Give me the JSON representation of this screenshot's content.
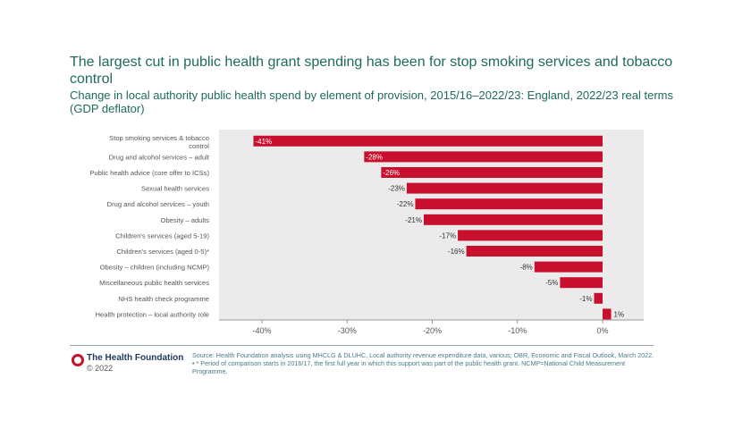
{
  "title": "The largest cut in public health grant spending has been for stop smoking services and tobacco control",
  "subtitle": "Change in local authority public health spend by element of provision, 2015/16–2022/23: England, 2022/23 real terms (GDP deflator)",
  "footer": {
    "org": "The Health Foundation",
    "copyright": "© 2022",
    "source": "Source: Health Foundation analysis using MHCLG & DLUHC, Local authority revenue expenditure data, various; OBR, Economic and Fiscal Outlook, March 2022. • * Period of comparison starts in 2016/17, the first full year in which this support was part of the public health grant. NCMP=National Child Measurement Programme."
  },
  "chart_data": {
    "type": "bar",
    "orientation": "horizontal",
    "categories": [
      "Stop smoking services & tobacco control",
      "Drug and alcohol services – adult",
      "Public health advice (core offer to ICSs)",
      "Sexual health services",
      "Drug and alcohol services – youth",
      "Obesity – adults",
      "Children's services (aged 5-19)",
      "Children's services (aged 0-5)*",
      "Obesity – children (including NCMP)",
      "Miscellaneous public health services",
      "NHS health check programme",
      "Health protection – local authority role"
    ],
    "values": [
      -41,
      -28,
      -26,
      -23,
      -22,
      -21,
      -17,
      -16,
      -8,
      -5,
      -1,
      1
    ],
    "data_labels": [
      "-41%",
      "-28%",
      "-26%",
      "-23%",
      "-22%",
      "-21%",
      "-17%",
      "-16%",
      "-8%",
      "-5%",
      "-1%",
      "1%"
    ],
    "xticks": [
      -40,
      -30,
      -20,
      -10,
      0
    ],
    "xtick_labels": [
      "-40%",
      "-30%",
      "-20%",
      "-10%",
      "0%"
    ],
    "xlim": [
      -45,
      5
    ],
    "bar_color": "#c8102e",
    "plot_bg": "#ebebeb",
    "grid": false
  }
}
